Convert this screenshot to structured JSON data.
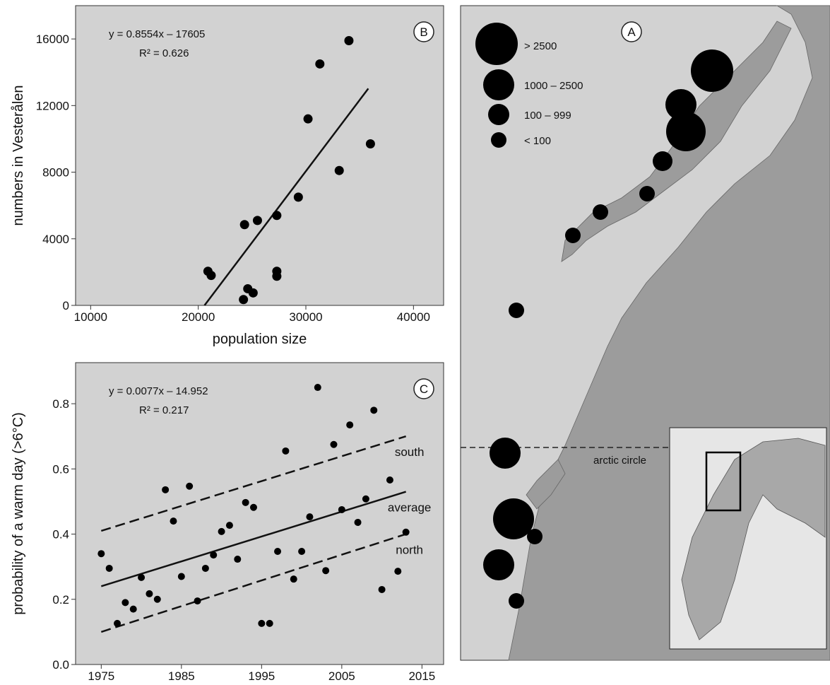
{
  "chart_data": [
    {
      "type": "scatter",
      "panel": "B",
      "equation": "y = 0.8554x – 17605",
      "r_squared": "R² = 0.626",
      "x_label": "population size",
      "y_label": "numbers in Vesterålen",
      "xlim": [
        8600,
        42800
      ],
      "ylim": [
        0,
        18000
      ],
      "xticks": [
        10000,
        20000,
        30000,
        40000
      ],
      "yticks": [
        0,
        4000,
        8000,
        12000,
        16000
      ],
      "points": {
        "x": [
          20900,
          21200,
          24300,
          25500,
          24600,
          25100,
          24200,
          27300,
          27300,
          27300,
          29300,
          30200,
          31300,
          33100,
          34000,
          36000
        ],
        "values": [
          2050,
          1800,
          4850,
          5100,
          1000,
          750,
          350,
          5400,
          2050,
          1750,
          6500,
          11200,
          14500,
          8100,
          15900,
          9700
        ]
      },
      "lines": [
        {
          "x": [
            20580,
            35800
          ],
          "values": [
            0,
            13020
          ],
          "style": "solid"
        }
      ]
    },
    {
      "type": "scatter",
      "panel": "C",
      "equation": "y = 0.0077x – 14.952",
      "r_squared": "R² = 0.217",
      "y_label": "probability of a warm day (>6°C)",
      "xlim": [
        1971.8,
        2017.7
      ],
      "ylim": [
        0,
        0.926
      ],
      "xticks": [
        1975,
        1985,
        1995,
        2005,
        2015
      ],
      "yticks": [
        {
          "value": 0,
          "label": "0.0"
        },
        0.2,
        0.4,
        0.6,
        0.8
      ],
      "points": {
        "x": [
          1975,
          1976,
          1977,
          1978,
          1979,
          1980,
          1981,
          1982,
          1983,
          1984,
          1985,
          1986,
          1987,
          1988,
          1989,
          1990,
          1991,
          1992,
          1993,
          1994,
          1995,
          1996,
          1997,
          1998,
          1999,
          2000,
          2001,
          2002,
          2003,
          2004,
          2005,
          2006,
          2007,
          2008,
          2009,
          2010,
          2011,
          2012,
          2013
        ],
        "values": [
          0.34,
          0.295,
          0.126,
          0.19,
          0.17,
          0.267,
          0.217,
          0.2,
          0.536,
          0.44,
          0.27,
          0.547,
          0.195,
          0.295,
          0.336,
          0.408,
          0.427,
          0.323,
          0.497,
          0.482,
          0.126,
          0.126,
          0.347,
          0.655,
          0.262,
          0.347,
          0.453,
          0.85,
          0.288,
          0.675,
          0.475,
          0.735,
          0.436,
          0.508,
          0.78,
          0.23,
          0.566,
          0.286,
          0.406
        ]
      },
      "lines": [
        {
          "name": "south",
          "x": [
            1975,
            2013
          ],
          "values": [
            0.41,
            0.7
          ],
          "style": "dashed"
        },
        {
          "name": "average",
          "x": [
            1975,
            2013
          ],
          "values": [
            0.24,
            0.53
          ],
          "style": "solid"
        },
        {
          "name": "north",
          "x": [
            1975,
            2013
          ],
          "values": [
            0.1,
            0.4
          ],
          "style": "dashed"
        }
      ]
    }
  ],
  "map": {
    "panel": "A",
    "legend": [
      "> 2500",
      "1000 – 2500",
      "100 – 999",
      "< 100"
    ],
    "arctic_label": "arctic circle"
  }
}
